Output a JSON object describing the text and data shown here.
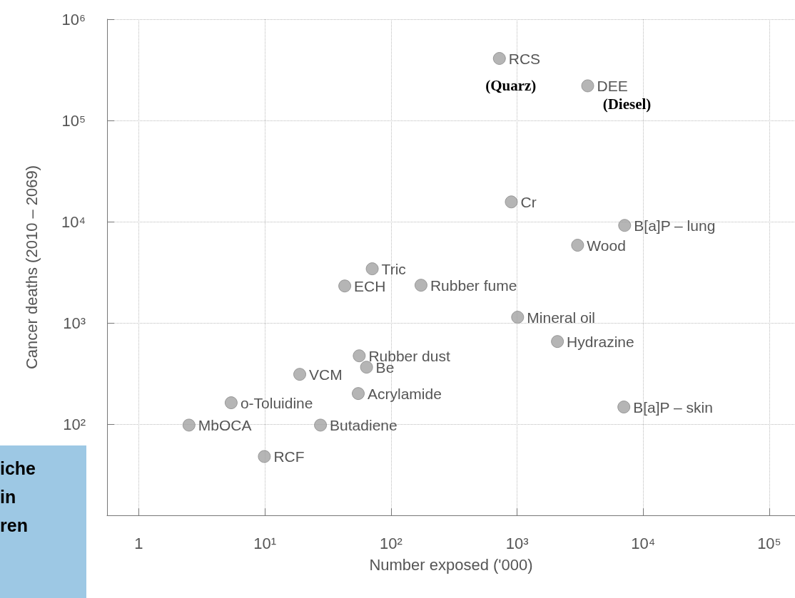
{
  "chart_data": {
    "type": "scatter",
    "xlabel": "Number exposed ('000)",
    "ylabel": "Cancer deaths (2010 – 2069)",
    "x": [
      724,
      3630,
      900,
      7130,
      3020,
      71,
      43,
      173,
      1010,
      2090,
      56,
      64,
      18.9,
      55,
      5.4,
      2.5,
      27.6,
      9.9,
      7030
    ],
    "series": [
      {
        "color": "#a3a3a3",
        "values": [
          410000,
          220000,
          15700,
          9200,
          5860,
          3430,
          2320,
          2360,
          1140,
          656,
          474,
          366,
          311,
          201,
          163,
          98,
          98,
          48,
          148
        ]
      }
    ],
    "marker": "circle",
    "log": "xy",
    "grid": true,
    "xlim": [
      0.56,
      160000
    ],
    "ylim": [
      12.6,
      1000000
    ],
    "xticks": [
      1,
      {
        "value": 10,
        "label": "10¹"
      },
      {
        "value": 100,
        "label": "10²"
      },
      {
        "value": 1000,
        "label": "10³"
      },
      {
        "value": 10000,
        "label": "10⁴"
      },
      {
        "value": 100000,
        "label": "10⁵"
      }
    ],
    "yticks": [
      {
        "value": 100,
        "label": "10²"
      },
      {
        "value": 1000,
        "label": "10³"
      },
      {
        "value": 10000,
        "label": "10⁴"
      },
      {
        "value": 100000,
        "label": "10⁵"
      },
      {
        "value": 1000000,
        "label": "10⁶"
      }
    ],
    "annotations": [
      {
        "text": "RCS",
        "x": 724,
        "y": 410000
      },
      {
        "text": "DEE",
        "x": 3630,
        "y": 220000
      },
      {
        "text": "Cr",
        "x": 900,
        "y": 15700
      },
      {
        "text": "B[a]P – lung",
        "x": 7130,
        "y": 9200
      },
      {
        "text": "Wood",
        "x": 3020,
        "y": 5860
      },
      {
        "text": "Tric",
        "x": 71,
        "y": 3430
      },
      {
        "text": "ECH",
        "x": 43,
        "y": 2320
      },
      {
        "text": "Rubber fume",
        "x": 173,
        "y": 2360
      },
      {
        "text": "Mineral oil",
        "x": 1010,
        "y": 1140
      },
      {
        "text": "Hydrazine",
        "x": 2090,
        "y": 656
      },
      {
        "text": "Rubber dust",
        "x": 56,
        "y": 474
      },
      {
        "text": "Be",
        "x": 64,
        "y": 366
      },
      {
        "text": "VCM",
        "x": 18.9,
        "y": 311
      },
      {
        "text": "Acrylamide",
        "x": 55,
        "y": 201
      },
      {
        "text": "o-Toluidine",
        "x": 5.4,
        "y": 163
      },
      {
        "text": "MbOCA",
        "x": 2.5,
        "y": 98
      },
      {
        "text": "Butadiene",
        "x": 27.6,
        "y": 98
      },
      {
        "text": "RCF",
        "x": 9.9,
        "y": 48
      },
      {
        "text": "B[a]P – skin",
        "x": 7030,
        "y": 148
      },
      "(Quarz)",
      "(Diesel)",
      "iche",
      "in",
      "ren"
    ]
  }
}
